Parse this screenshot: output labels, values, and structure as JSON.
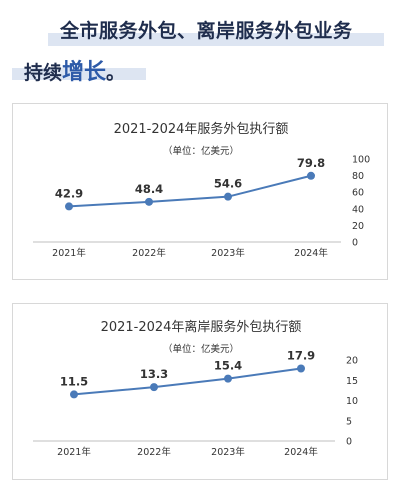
{
  "headline": {
    "line1": "全市服务外包、离岸服务外包业务",
    "line2_prefix": "持续",
    "line2_emphasis": "增长",
    "line2_suffix": "。"
  },
  "chart_data": [
    {
      "type": "line",
      "title": "2021-2024年服务外包执行额",
      "unit": "（单位：亿美元）",
      "categories": [
        "2021年",
        "2022年",
        "2023年",
        "2024年"
      ],
      "values": [
        42.9,
        48.4,
        54.6,
        79.8
      ],
      "value_labels": [
        "42.9",
        "48.4",
        "54.6",
        "79.8"
      ],
      "yticks": [
        "0",
        "20",
        "40",
        "60",
        "80",
        "100"
      ],
      "ylim": [
        0,
        100
      ],
      "legend": "none",
      "line_color": "#4a7ab8",
      "marker_color": "#4a7ab8"
    },
    {
      "type": "line",
      "title": "2021-2024年离岸服务外包执行额",
      "unit": "（单位：亿美元）",
      "categories": [
        "2021年",
        "2022年",
        "2023年",
        "2024年"
      ],
      "values": [
        11.5,
        13.3,
        15.4,
        17.9
      ],
      "value_labels": [
        "11.5",
        "13.3",
        "15.4",
        "17.9"
      ],
      "yticks": [
        "0",
        "5",
        "10",
        "15",
        "20"
      ],
      "ylim": [
        0,
        20
      ],
      "legend": "none",
      "line_color": "#4a7ab8",
      "marker_color": "#4a7ab8"
    }
  ]
}
